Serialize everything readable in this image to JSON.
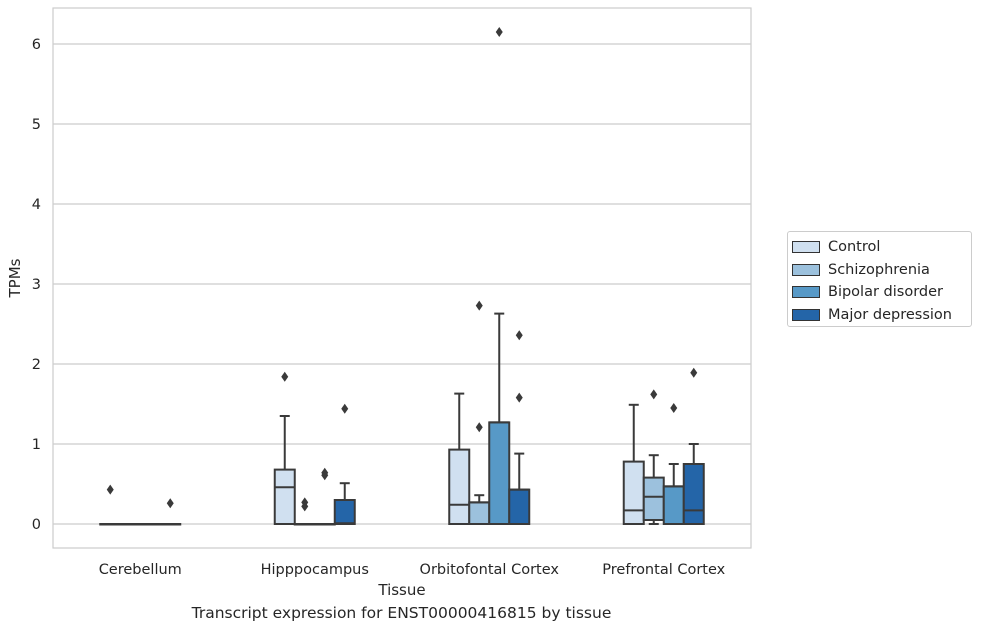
{
  "caption": "Transcript expression for ENST00000416815 by tissue",
  "legend": {
    "items": [
      {
        "label": "Control",
        "color": "#d0e0f0"
      },
      {
        "label": "Schizophrenia",
        "color": "#9cc1dd"
      },
      {
        "label": "Bipolar disorder",
        "color": "#5799c7"
      },
      {
        "label": "Major depression",
        "color": "#2465a8"
      }
    ]
  },
  "chart_data": {
    "type": "box",
    "xlabel": "Tissue",
    "ylabel": "TPMs",
    "ylim": [
      -0.3,
      6.45
    ],
    "yticks": [
      0,
      1,
      2,
      3,
      4,
      5,
      6
    ],
    "grid": true,
    "legend_position": "right",
    "categories": [
      "Cerebellum",
      "Hipppocampus",
      "Orbitofontal Cortex",
      "Prefrontal Cortex"
    ],
    "series": [
      {
        "name": "Control",
        "color": "#d0e0f0",
        "boxes": [
          {
            "q1": 0,
            "median": 0,
            "q3": 0,
            "whisker_low": 0,
            "whisker_high": 0,
            "outliers": [
              0.43
            ]
          },
          {
            "q1": 0,
            "median": 0.46,
            "q3": 0.68,
            "whisker_low": 0,
            "whisker_high": 1.35,
            "outliers": [
              1.84
            ]
          },
          {
            "q1": 0,
            "median": 0.24,
            "q3": 0.93,
            "whisker_low": 0,
            "whisker_high": 1.63,
            "outliers": []
          },
          {
            "q1": 0,
            "median": 0.17,
            "q3": 0.78,
            "whisker_low": 0,
            "whisker_high": 1.49,
            "outliers": []
          }
        ]
      },
      {
        "name": "Schizophrenia",
        "color": "#9cc1dd",
        "boxes": [
          {
            "q1": 0,
            "median": 0,
            "q3": 0,
            "whisker_low": 0,
            "whisker_high": 0,
            "outliers": []
          },
          {
            "q1": 0,
            "median": 0,
            "q3": 0,
            "whisker_low": 0,
            "whisker_high": 0,
            "outliers": [
              0.27,
              0.22
            ]
          },
          {
            "q1": 0,
            "median": 0.27,
            "q3": 0.27,
            "whisker_low": 0,
            "whisker_high": 0.36,
            "outliers": [
              1.21,
              2.73
            ]
          },
          {
            "q1": 0.05,
            "median": 0.34,
            "q3": 0.58,
            "whisker_low": 0,
            "whisker_high": 0.86,
            "outliers": [
              1.62
            ]
          }
        ]
      },
      {
        "name": "Bipolar disorder",
        "color": "#5799c7",
        "boxes": [
          {
            "q1": 0,
            "median": 0,
            "q3": 0,
            "whisker_low": 0,
            "whisker_high": 0,
            "outliers": []
          },
          {
            "q1": 0,
            "median": 0,
            "q3": 0,
            "whisker_low": 0,
            "whisker_high": 0,
            "outliers": [
              0.64,
              0.61
            ]
          },
          {
            "q1": 0,
            "median": 1.27,
            "q3": 1.27,
            "whisker_low": 0,
            "whisker_high": 2.63,
            "outliers": [
              6.15
            ]
          },
          {
            "q1": 0,
            "median": 0.47,
            "q3": 0.47,
            "whisker_low": 0,
            "whisker_high": 0.75,
            "outliers": [
              1.45
            ]
          }
        ]
      },
      {
        "name": "Major depression",
        "color": "#2465a8",
        "boxes": [
          {
            "q1": 0,
            "median": 0,
            "q3": 0,
            "whisker_low": 0,
            "whisker_high": 0,
            "outliers": [
              0.26
            ]
          },
          {
            "q1": 0,
            "median": 0.01,
            "q3": 0.3,
            "whisker_low": 0,
            "whisker_high": 0.51,
            "outliers": [
              1.44
            ]
          },
          {
            "q1": 0,
            "median": 0.43,
            "q3": 0.43,
            "whisker_low": 0,
            "whisker_high": 0.88,
            "outliers": [
              1.58,
              2.36
            ]
          },
          {
            "q1": 0,
            "median": 0.17,
            "q3": 0.75,
            "whisker_low": 0,
            "whisker_high": 1.0,
            "outliers": [
              1.89
            ]
          }
        ]
      }
    ]
  }
}
